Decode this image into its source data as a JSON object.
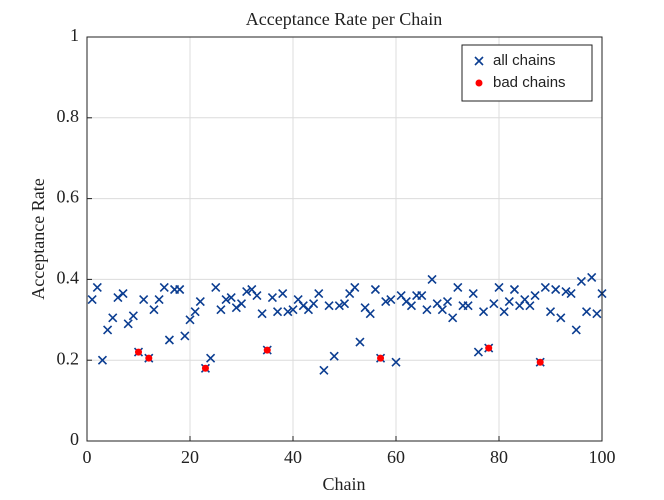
{
  "chart_data": {
    "type": "scatter",
    "title": "Acceptance Rate per Chain",
    "x_label": "Chain",
    "y_label": "Acceptance Rate",
    "xlim": [
      0,
      100
    ],
    "xticks": [
      0,
      20,
      40,
      60,
      80,
      100
    ],
    "ylim": [
      0,
      1
    ],
    "yticks": [
      0,
      0.2,
      0.4,
      0.6,
      0.8,
      1
    ],
    "grid": true,
    "legend_position": "northeast",
    "series": [
      {
        "name": "all chains",
        "color": "#0b3d91",
        "marker": "x",
        "x": [
          1,
          2,
          3,
          4,
          5,
          6,
          7,
          8,
          9,
          10,
          11,
          12,
          13,
          14,
          15,
          16,
          17,
          18,
          19,
          20,
          21,
          22,
          23,
          24,
          25,
          26,
          27,
          28,
          29,
          30,
          31,
          32,
          33,
          34,
          35,
          36,
          37,
          38,
          39,
          40,
          41,
          42,
          43,
          44,
          45,
          46,
          47,
          48,
          49,
          50,
          51,
          52,
          53,
          54,
          55,
          56,
          57,
          58,
          59,
          60,
          61,
          62,
          63,
          64,
          65,
          66,
          67,
          68,
          69,
          70,
          71,
          72,
          73,
          74,
          75,
          76,
          77,
          78,
          79,
          80,
          81,
          82,
          83,
          84,
          85,
          86,
          87,
          88,
          89,
          90,
          91,
          92,
          93,
          94,
          95,
          96,
          97,
          98,
          99,
          100
        ],
        "values": [
          0.35,
          0.38,
          0.2,
          0.275,
          0.305,
          0.355,
          0.365,
          0.29,
          0.31,
          0.22,
          0.35,
          0.205,
          0.325,
          0.35,
          0.38,
          0.25,
          0.375,
          0.375,
          0.26,
          0.3,
          0.32,
          0.345,
          0.18,
          0.205,
          0.38,
          0.325,
          0.35,
          0.355,
          0.33,
          0.34,
          0.37,
          0.375,
          0.36,
          0.315,
          0.225,
          0.355,
          0.32,
          0.365,
          0.32,
          0.325,
          0.35,
          0.335,
          0.325,
          0.34,
          0.365,
          0.175,
          0.335,
          0.21,
          0.335,
          0.34,
          0.365,
          0.38,
          0.245,
          0.33,
          0.315,
          0.375,
          0.205,
          0.345,
          0.35,
          0.195,
          0.36,
          0.345,
          0.335,
          0.36,
          0.36,
          0.325,
          0.4,
          0.34,
          0.325,
          0.345,
          0.305,
          0.38,
          0.335,
          0.335,
          0.365,
          0.22,
          0.32,
          0.23,
          0.34,
          0.38,
          0.32,
          0.345,
          0.375,
          0.335,
          0.35,
          0.335,
          0.36,
          0.195,
          0.38,
          0.32,
          0.375,
          0.305,
          0.37,
          0.365,
          0.275,
          0.395,
          0.32,
          0.405,
          0.315,
          0.365
        ]
      },
      {
        "name": "bad chains",
        "color": "#ff0000",
        "marker": "dot",
        "x": [
          10,
          12,
          23,
          35,
          57,
          78,
          88
        ],
        "values": [
          0.22,
          0.205,
          0.18,
          0.225,
          0.205,
          0.23,
          0.195
        ]
      }
    ]
  }
}
